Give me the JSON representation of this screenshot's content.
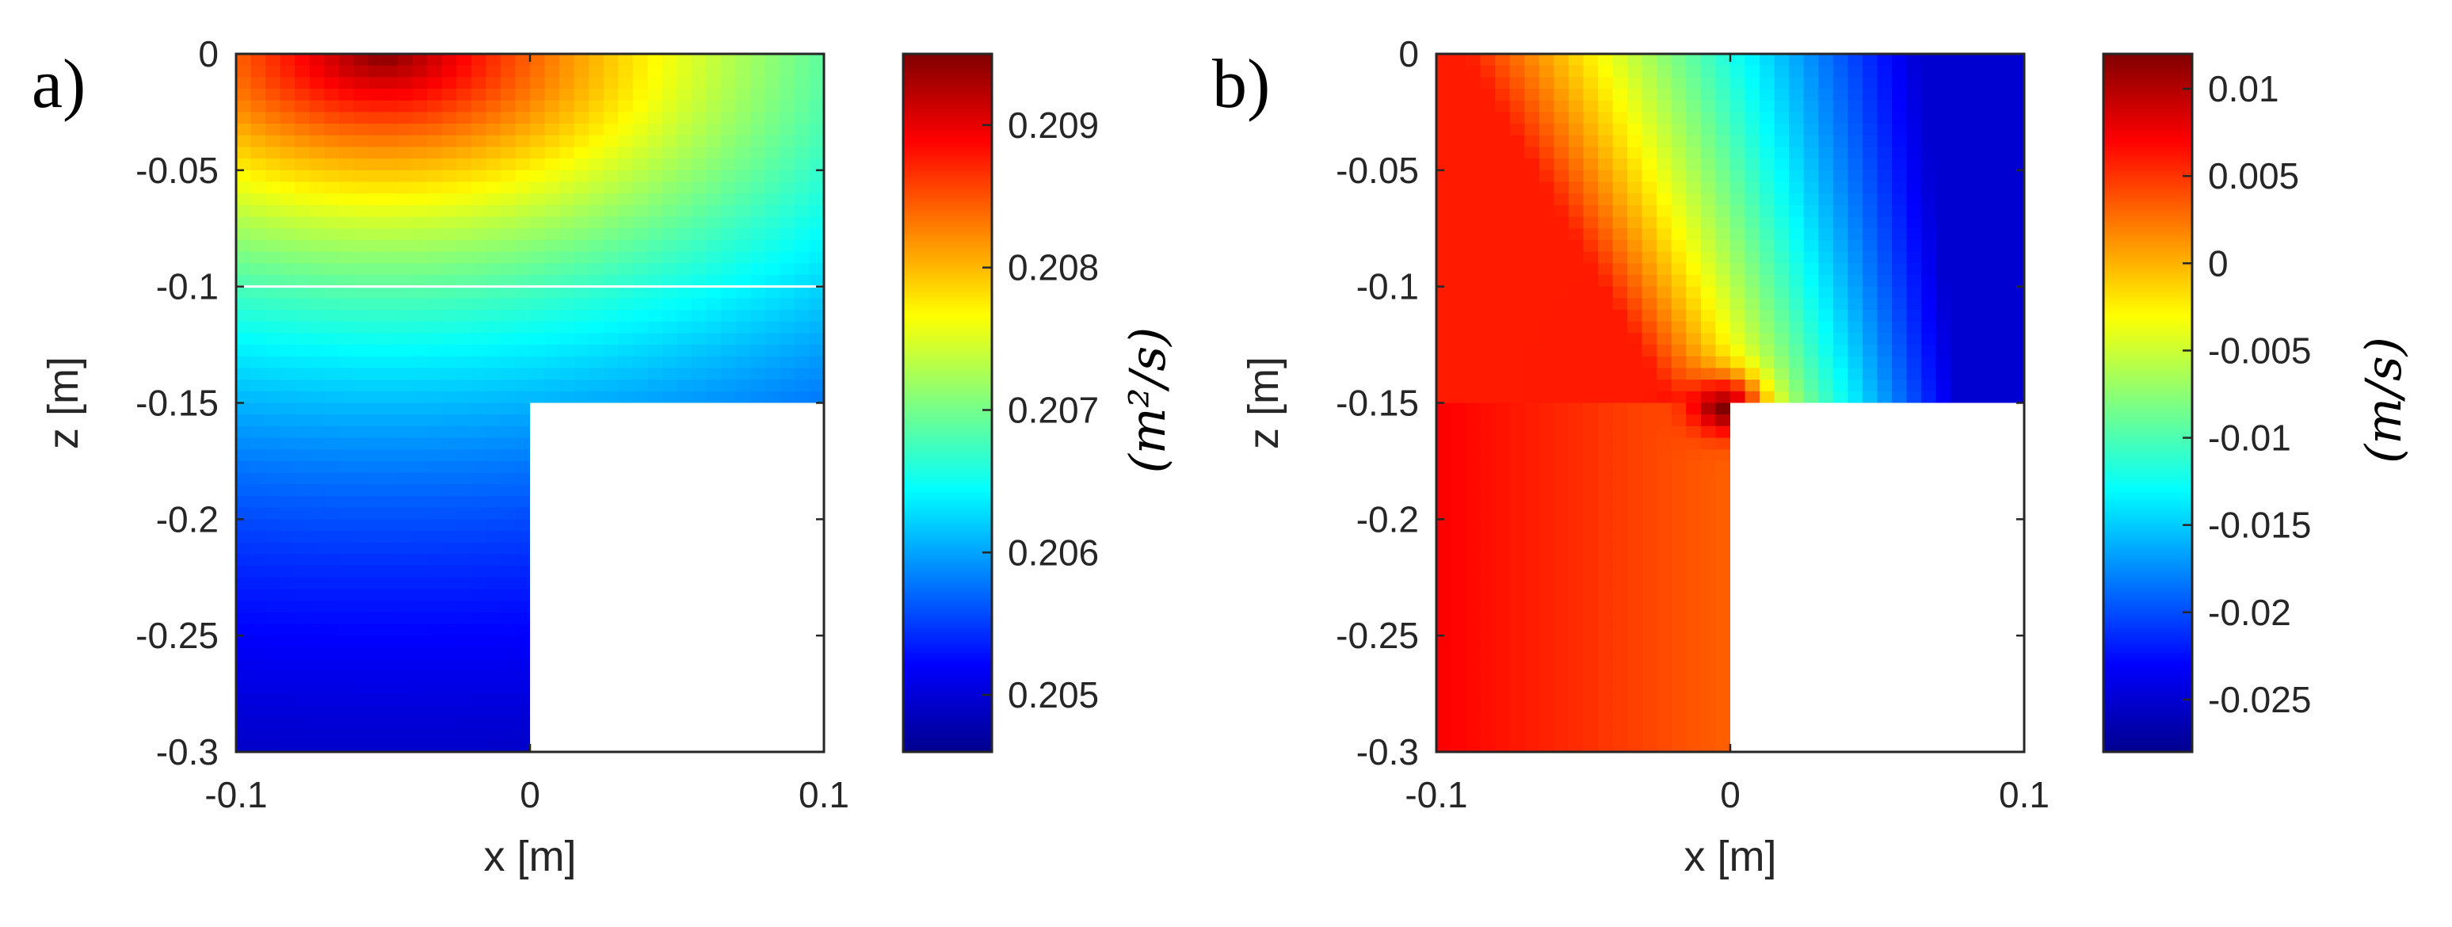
{
  "chart_data": [
    {
      "type": "heatmap",
      "panel_label": "a)",
      "xlabel": "x [m]",
      "ylabel": "z [m]",
      "xlim": [
        -0.1,
        0.1
      ],
      "ylim": [
        -0.3,
        0
      ],
      "x_ticks": [
        -0.1,
        0,
        0.1
      ],
      "x_tick_labels": [
        "-0.1",
        "0",
        "0.1"
      ],
      "y_ticks": [
        0,
        -0.05,
        -0.1,
        -0.15,
        -0.2,
        -0.25,
        -0.3
      ],
      "y_tick_labels": [
        "0",
        "-0.05",
        "-0.1",
        "-0.15",
        "-0.2",
        "-0.25",
        "-0.3"
      ],
      "mask_region": {
        "x": [
          0,
          0.1
        ],
        "z": [
          -0.3,
          -0.15
        ]
      },
      "reference_line_z": -0.1,
      "field_description": "maximum near z=0 around x=-0.05 decreasing with depth",
      "colormap": "jet",
      "colorbar": {
        "label": "(m²/s)",
        "range": [
          0.2046,
          0.2095
        ],
        "ticks": [
          0.205,
          0.206,
          0.207,
          0.208,
          0.209
        ],
        "tick_labels": [
          "0.205",
          "0.206",
          "0.207",
          "0.208",
          "0.209"
        ]
      }
    },
    {
      "type": "heatmap",
      "panel_label": "b)",
      "xlabel": "x [m]",
      "ylabel": "z [m]",
      "xlim": [
        -0.1,
        0.1
      ],
      "ylim": [
        -0.3,
        0
      ],
      "x_ticks": [
        -0.1,
        0,
        0.1
      ],
      "x_tick_labels": [
        "-0.1",
        "0",
        "0.1"
      ],
      "y_ticks": [
        0,
        -0.05,
        -0.1,
        -0.15,
        -0.2,
        -0.25,
        -0.3
      ],
      "y_tick_labels": [
        "0",
        "-0.05",
        "-0.1",
        "-0.15",
        "-0.2",
        "-0.25",
        "-0.3"
      ],
      "mask_region": {
        "x": [
          0,
          0.1
        ],
        "z": [
          -0.3,
          -0.15
        ]
      },
      "field_description": "positive on left side, negative on upper right, singular point at corner (0, -0.15)",
      "colormap": "jet",
      "colorbar": {
        "label": "(m/s)",
        "range": [
          -0.028,
          0.012
        ],
        "ticks": [
          0.01,
          0.005,
          0,
          -0.005,
          -0.01,
          -0.015,
          -0.02,
          -0.025
        ],
        "tick_labels": [
          "0.01",
          "0.005",
          "0",
          "-0.005",
          "-0.01",
          "-0.015",
          "-0.02",
          "-0.025"
        ]
      }
    }
  ]
}
